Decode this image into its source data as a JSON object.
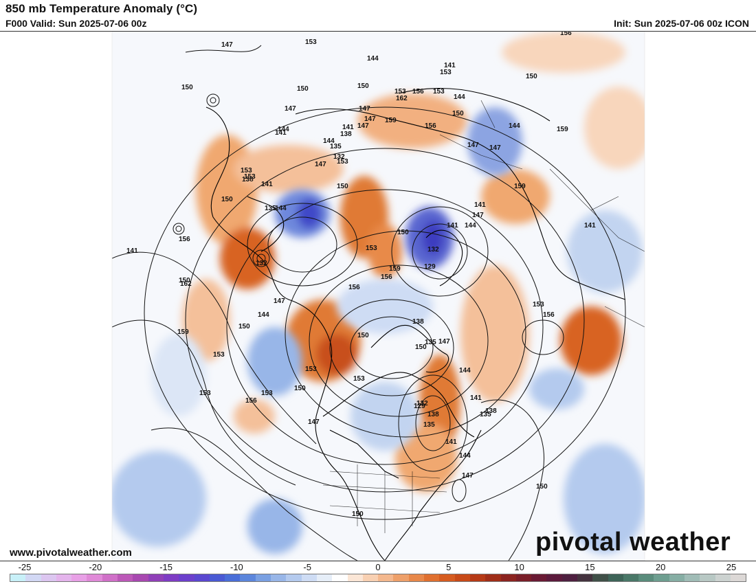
{
  "header": {
    "title": "850 mb Temperature Anomaly (°C)",
    "valid": "F000 Valid: Sun 2025-07-06 00z",
    "init": "Init: Sun 2025-07-06 00z ICON"
  },
  "footer": {
    "website": "www.pivotalweather.com",
    "logo_left": "pivo",
    "logo_mid": "tal",
    "logo_right": " weather"
  },
  "colorbar": {
    "ticks": [
      "-25",
      "-20",
      "-15",
      "-10",
      "-5",
      "0",
      "5",
      "10",
      "15",
      "20",
      "25"
    ],
    "colors": [
      "#c8f0f8",
      "#d2d8f4",
      "#dcc6f0",
      "#e4b4ec",
      "#e8a0e6",
      "#e08ad8",
      "#d070c8",
      "#bc58b8",
      "#a848b0",
      "#9040b8",
      "#7e3cc4",
      "#6c40cc",
      "#5a48d0",
      "#4a5ad4",
      "#4a6ed8",
      "#5c86dc",
      "#7aa0e2",
      "#98b6e8",
      "#b4caee",
      "#cedcf4",
      "#e6eef8",
      "#ffffff",
      "#fbe6d6",
      "#f8d0b2",
      "#f4b88e",
      "#eea06a",
      "#e8884a",
      "#e07030",
      "#d65c20",
      "#c84a18",
      "#b63a16",
      "#a02e18",
      "#8c2420",
      "#7a1e28",
      "#6a1a34",
      "#5c1a3c",
      "#4e2040",
      "#44323e",
      "#405048",
      "#3e6458",
      "#4a7868",
      "#5a8c7c",
      "#6e9e90",
      "#86aea4",
      "#a0bcb6",
      "#b8c8c4",
      "#ccd2d0",
      "#dcd8d6"
    ],
    "legend_range": [
      -25,
      25
    ]
  },
  "map": {
    "contour_labels": [
      "147",
      "150",
      "153",
      "144",
      "141",
      "156",
      "153",
      "150",
      "147",
      "144",
      "141",
      "138",
      "135",
      "132",
      "129",
      "159",
      "162",
      "150",
      "147",
      "153",
      "156",
      "159",
      "150",
      "153",
      "156",
      "159",
      "162",
      "147",
      "141",
      "144",
      "147",
      "150",
      "153",
      "147",
      "144",
      "141",
      "138",
      "135",
      "132",
      "150",
      "153",
      "156",
      "141",
      "144",
      "147",
      "150",
      "153",
      "153",
      "150",
      "156",
      "153",
      "150",
      "147",
      "153",
      "156",
      "150",
      "153",
      "138",
      "135",
      "132",
      "141",
      "144",
      "147",
      "150",
      "153",
      "156",
      "159",
      "150",
      "147",
      "144",
      "141",
      "138",
      "135",
      "132",
      "129",
      "135",
      "138",
      "141",
      "144",
      "147",
      "150",
      "153",
      "156",
      "159",
      "147",
      "144",
      "141",
      "153",
      "150",
      "147",
      "144",
      "141",
      "150",
      "153",
      "144"
    ],
    "colors": {
      "ocean_warm": "#f4b88e",
      "ocean_cool": "#b4caee",
      "strong_warm": "#d65c20",
      "strong_cool": "#4a5ad4",
      "contour": "#111111",
      "coast": "#000000"
    }
  }
}
